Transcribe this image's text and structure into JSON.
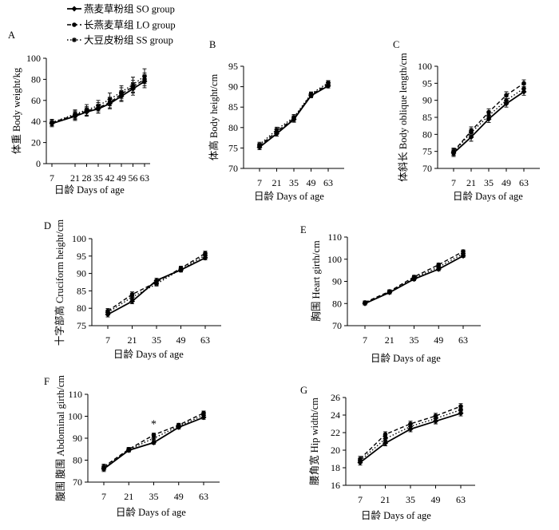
{
  "legend": [
    {
      "label": "燕麦草粉组 SO group",
      "style": "solid"
    },
    {
      "label": "长燕麦草组 LO group",
      "style": "dashed"
    },
    {
      "label": "大豆皮粉组 SS group",
      "style": "dotted"
    }
  ],
  "chart_data": [
    {
      "panel": "A",
      "type": "line",
      "xlabel": "日龄  Days of age",
      "ylabel": "体重  Body weight/kg",
      "x": [
        7,
        21,
        28,
        35,
        42,
        49,
        56,
        63
      ],
      "ylim": [
        0,
        100
      ],
      "yticks": [
        0,
        20,
        40,
        60,
        80,
        100
      ],
      "series": [
        {
          "name": "燕麦草粉组 SO group",
          "values": [
            38,
            45,
            49,
            52,
            57,
            64,
            71,
            78
          ],
          "errors": [
            3,
            4,
            4,
            4,
            5,
            5,
            6,
            6
          ]
        },
        {
          "name": "长燕麦草组 LO group",
          "values": [
            39,
            46,
            50,
            53,
            58,
            66,
            73,
            80
          ],
          "errors": [
            3,
            4,
            4,
            5,
            5,
            6,
            6,
            6
          ]
        },
        {
          "name": "大豆皮粉组 SS group",
          "values": [
            39,
            47,
            51,
            55,
            61,
            68,
            75,
            83
          ],
          "errors": [
            3,
            4,
            5,
            5,
            6,
            6,
            7,
            7
          ]
        }
      ],
      "annotations": []
    },
    {
      "panel": "B",
      "type": "line",
      "xlabel": "日龄  Days of age",
      "ylabel": "体高  Body height/cm",
      "x": [
        7,
        21,
        35,
        49,
        63
      ],
      "ylim": [
        70,
        95
      ],
      "yticks": [
        70,
        75,
        80,
        85,
        90,
        95
      ],
      "series": [
        {
          "name": "燕麦草粉组 SO group",
          "values": [
            75.2,
            78.5,
            82.0,
            87.8,
            90.2
          ],
          "errors": [
            0.6,
            0.6,
            0.7,
            0.5,
            0.5
          ]
        },
        {
          "name": "长燕麦草组 LO group",
          "values": [
            75.5,
            79.0,
            82.2,
            88.0,
            90.6
          ],
          "errors": [
            0.6,
            0.6,
            0.7,
            0.5,
            0.5
          ]
        },
        {
          "name": "大豆皮粉组 SS group",
          "values": [
            75.8,
            79.5,
            82.5,
            88.2,
            91.0
          ],
          "errors": [
            0.6,
            0.6,
            0.7,
            0.5,
            0.5
          ]
        }
      ],
      "annotations": []
    },
    {
      "panel": "C",
      "type": "line",
      "xlabel": "日龄  Days of age",
      "ylabel": "体斜长  Body oblique length/cm",
      "x": [
        7,
        21,
        35,
        49,
        63
      ],
      "ylim": [
        70,
        100
      ],
      "yticks": [
        70,
        75,
        80,
        85,
        90,
        95,
        100
      ],
      "series": [
        {
          "name": "燕麦草粉组 SO group",
          "values": [
            74.5,
            79.2,
            84.5,
            89.0,
            92.5
          ],
          "errors": [
            1.0,
            1.2,
            1.0,
            1.0,
            1.0
          ]
        },
        {
          "name": "长燕麦草组 LO group",
          "values": [
            75.0,
            81.0,
            86.5,
            91.5,
            95.0
          ],
          "errors": [
            1.0,
            1.2,
            1.0,
            1.0,
            1.0
          ]
        },
        {
          "name": "大豆皮粉组 SS group",
          "values": [
            74.8,
            80.5,
            85.5,
            90.0,
            93.5
          ],
          "errors": [
            1.0,
            1.2,
            1.0,
            1.0,
            1.0
          ]
        }
      ],
      "annotations": []
    },
    {
      "panel": "D",
      "type": "line",
      "xlabel": "日龄  Days of age",
      "ylabel": "十字部高  Cruciform height/cm",
      "x": [
        7,
        21,
        35,
        49,
        63
      ],
      "ylim": [
        75,
        100
      ],
      "yticks": [
        75,
        80,
        85,
        90,
        95,
        100
      ],
      "series": [
        {
          "name": "燕麦草粉组 SO group",
          "values": [
            78.2,
            82.0,
            88.0,
            91.0,
            94.5
          ],
          "errors": [
            0.7,
            0.7,
            0.6,
            0.6,
            0.6
          ]
        },
        {
          "name": "长燕麦草组 LO group",
          "values": [
            79.2,
            84.0,
            87.5,
            91.5,
            95.8
          ],
          "errors": [
            0.7,
            0.7,
            0.6,
            0.6,
            0.6
          ]
        },
        {
          "name": "大豆皮粉组 SS group",
          "values": [
            78.8,
            83.2,
            87.0,
            91.2,
            95.2
          ],
          "errors": [
            0.7,
            0.7,
            0.6,
            0.6,
            0.6
          ]
        }
      ],
      "annotations": []
    },
    {
      "panel": "E",
      "type": "line",
      "xlabel": "日龄  Days of age",
      "ylabel": "胸围  Heart girth/cm",
      "x": [
        7,
        21,
        35,
        49,
        63
      ],
      "ylim": [
        70,
        110
      ],
      "yticks": [
        70,
        80,
        90,
        100,
        110
      ],
      "series": [
        {
          "name": "燕麦草粉组 SO group",
          "values": [
            80.0,
            85.0,
            91.0,
            95.5,
            101.5
          ],
          "errors": [
            0.7,
            0.7,
            0.7,
            0.7,
            0.7
          ]
        },
        {
          "name": "长燕麦草组 LO group",
          "values": [
            80.5,
            85.5,
            92.0,
            97.5,
            103.5
          ],
          "errors": [
            0.7,
            0.7,
            0.7,
            0.7,
            0.7
          ]
        },
        {
          "name": "大豆皮粉组 SS group",
          "values": [
            80.2,
            85.2,
            91.5,
            96.5,
            102.5
          ],
          "errors": [
            0.7,
            0.7,
            0.7,
            0.7,
            0.7
          ]
        }
      ],
      "annotations": []
    },
    {
      "panel": "F",
      "type": "line",
      "xlabel": "日龄  Days of age",
      "ylabel": "腹围  腹围 Abdominal girth/cm",
      "x": [
        7,
        21,
        35,
        49,
        63
      ],
      "ylim": [
        70,
        110
      ],
      "yticks": [
        70,
        80,
        90,
        100,
        110
      ],
      "series": [
        {
          "name": "燕麦草粉组 SO group",
          "values": [
            76.0,
            84.5,
            88.0,
            95.0,
            99.5
          ],
          "errors": [
            1.2,
            0.8,
            0.8,
            0.8,
            0.9
          ]
        },
        {
          "name": "长燕麦草组 LO group",
          "values": [
            77.0,
            85.0,
            91.5,
            96.0,
            101.5
          ],
          "errors": [
            1.2,
            0.8,
            0.8,
            0.8,
            0.9
          ]
        },
        {
          "name": "大豆皮粉组 SS group",
          "values": [
            76.5,
            84.8,
            90.0,
            95.5,
            100.5
          ],
          "errors": [
            1.2,
            0.8,
            0.8,
            0.8,
            0.9
          ]
        }
      ],
      "annotations": [
        {
          "x": 35,
          "y": 95.0,
          "text": "*"
        }
      ]
    },
    {
      "panel": "G",
      "type": "line",
      "xlabel": "日龄  Days of age",
      "ylabel": "腰角宽  Hip width/cm",
      "x": [
        7,
        21,
        35,
        49,
        63
      ],
      "ylim": [
        16,
        26
      ],
      "yticks": [
        16,
        18,
        20,
        22,
        24,
        26
      ],
      "series": [
        {
          "name": "燕麦草粉组 SO group",
          "values": [
            18.6,
            20.8,
            22.4,
            23.3,
            24.2
          ],
          "errors": [
            0.3,
            0.3,
            0.3,
            0.3,
            0.3
          ]
        },
        {
          "name": "长燕麦草组 LO group",
          "values": [
            19.0,
            21.8,
            23.0,
            23.9,
            25.0
          ],
          "errors": [
            0.3,
            0.3,
            0.3,
            0.3,
            0.3
          ]
        },
        {
          "name": "大豆皮粉组 SS group",
          "values": [
            18.8,
            21.3,
            22.7,
            23.6,
            24.6
          ],
          "errors": [
            0.3,
            0.3,
            0.3,
            0.3,
            0.3
          ]
        }
      ],
      "annotations": []
    }
  ]
}
